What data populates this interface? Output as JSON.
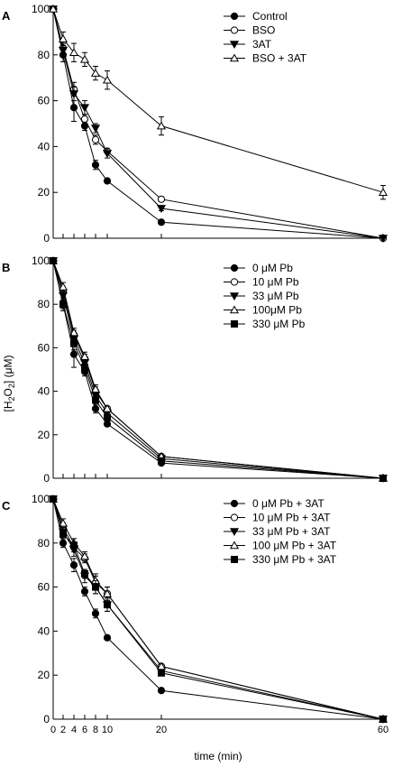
{
  "figure": {
    "ylabel_prefix": "[H",
    "ylabel_sub1": "2",
    "ylabel_mid": "O",
    "ylabel_sub2": "2",
    "ylabel_suffix": "] (μM)",
    "xlabel": "time (min)",
    "x_ticks": [
      "0",
      "2",
      "4",
      "6",
      "8",
      "10",
      "20",
      "60"
    ],
    "y_ticks": [
      "0",
      "20",
      "40",
      "60",
      "80",
      "100"
    ]
  },
  "chart_data": [
    {
      "type": "line",
      "panel_label": "A",
      "x": [
        0,
        2,
        4,
        6,
        8,
        10,
        20,
        60
      ],
      "xlabel": "time (min)",
      "ylabel": "[H2O2] (μM)",
      "ylim": [
        0,
        100
      ],
      "legend_position": "top-right",
      "series": [
        {
          "name": "Control",
          "marker": "circle-filled",
          "values": [
            100,
            80,
            57,
            49,
            32,
            25,
            7,
            0
          ],
          "errors": [
            0,
            3,
            6,
            2,
            2,
            1,
            1,
            0
          ]
        },
        {
          "name": "BSO",
          "marker": "circle-open",
          "values": [
            100,
            83,
            65,
            52,
            43,
            38,
            17,
            0
          ],
          "errors": [
            0,
            2,
            3,
            2,
            2,
            1,
            1,
            0
          ]
        },
        {
          "name": "3AT",
          "marker": "triangle-down-filled",
          "values": [
            100,
            82,
            63,
            57,
            48,
            37,
            13,
            0
          ],
          "errors": [
            0,
            2,
            3,
            3,
            2,
            2,
            1,
            0
          ]
        },
        {
          "name": "BSO + 3AT",
          "marker": "triangle-up-open",
          "values": [
            100,
            87,
            81,
            78,
            72,
            69,
            49,
            20
          ],
          "errors": [
            0,
            3,
            4,
            3,
            3,
            4,
            4,
            3
          ]
        }
      ]
    },
    {
      "type": "line",
      "panel_label": "B",
      "x": [
        0,
        2,
        4,
        6,
        8,
        10,
        20,
        60
      ],
      "xlabel": "time (min)",
      "ylabel": "[H2O2] (μM)",
      "ylim": [
        0,
        100
      ],
      "legend_position": "top-right",
      "series": [
        {
          "name": "0 μM Pb",
          "marker": "circle-filled",
          "values": [
            100,
            80,
            57,
            49,
            32,
            25,
            7,
            0
          ],
          "errors": [
            0,
            3,
            6,
            2,
            2,
            1,
            1,
            0
          ]
        },
        {
          "name": "10 μM Pb",
          "marker": "circle-open",
          "values": [
            100,
            86,
            66,
            55,
            40,
            32,
            10,
            0
          ],
          "errors": [
            0,
            2,
            2,
            2,
            2,
            1,
            1,
            0
          ]
        },
        {
          "name": "33 μM Pb",
          "marker": "triangle-down-filled",
          "values": [
            100,
            84,
            64,
            53,
            38,
            30,
            9,
            0
          ],
          "errors": [
            0,
            2,
            2,
            2,
            2,
            1,
            1,
            0
          ]
        },
        {
          "name": "100μM Pb",
          "marker": "triangle-up-open",
          "values": [
            100,
            88,
            67,
            56,
            41,
            32,
            10,
            0
          ],
          "errors": [
            0,
            2,
            2,
            2,
            2,
            1,
            1,
            0
          ]
        },
        {
          "name": "330 μM Pb",
          "marker": "square-filled",
          "values": [
            100,
            80,
            62,
            51,
            36,
            28,
            8,
            0
          ],
          "errors": [
            0,
            2,
            3,
            2,
            2,
            1,
            1,
            0
          ]
        }
      ]
    },
    {
      "type": "line",
      "panel_label": "C",
      "x": [
        0,
        2,
        4,
        6,
        8,
        10,
        20,
        60
      ],
      "xlabel": "time (min)",
      "ylabel": "[H2O2] (μM)",
      "ylim": [
        0,
        100
      ],
      "legend_position": "top-right",
      "series": [
        {
          "name": "0 μM Pb + 3AT",
          "marker": "circle-filled",
          "values": [
            100,
            80,
            70,
            58,
            48,
            37,
            13,
            0
          ],
          "errors": [
            0,
            2,
            3,
            2,
            2,
            1,
            1,
            0
          ]
        },
        {
          "name": "10 μM Pb + 3AT",
          "marker": "circle-open",
          "values": [
            100,
            87,
            78,
            73,
            62,
            57,
            24,
            0
          ],
          "errors": [
            0,
            2,
            2,
            2,
            3,
            3,
            1,
            0
          ]
        },
        {
          "name": "33 μM Pb + 3AT",
          "marker": "triangle-down-filled",
          "values": [
            100,
            85,
            77,
            65,
            60,
            52,
            22,
            0
          ],
          "errors": [
            0,
            2,
            3,
            3,
            3,
            3,
            1,
            0
          ]
        },
        {
          "name": "100 μM Pb + 3AT",
          "marker": "triangle-up-open",
          "values": [
            100,
            89,
            80,
            74,
            63,
            57,
            24,
            0
          ],
          "errors": [
            0,
            2,
            2,
            2,
            3,
            3,
            1,
            0
          ]
        },
        {
          "name": "330 μM Pb + 3AT",
          "marker": "square-filled",
          "values": [
            100,
            84,
            79,
            66,
            60,
            52,
            21,
            0
          ],
          "errors": [
            0,
            2,
            3,
            2,
            3,
            3,
            1,
            0
          ]
        }
      ]
    }
  ]
}
